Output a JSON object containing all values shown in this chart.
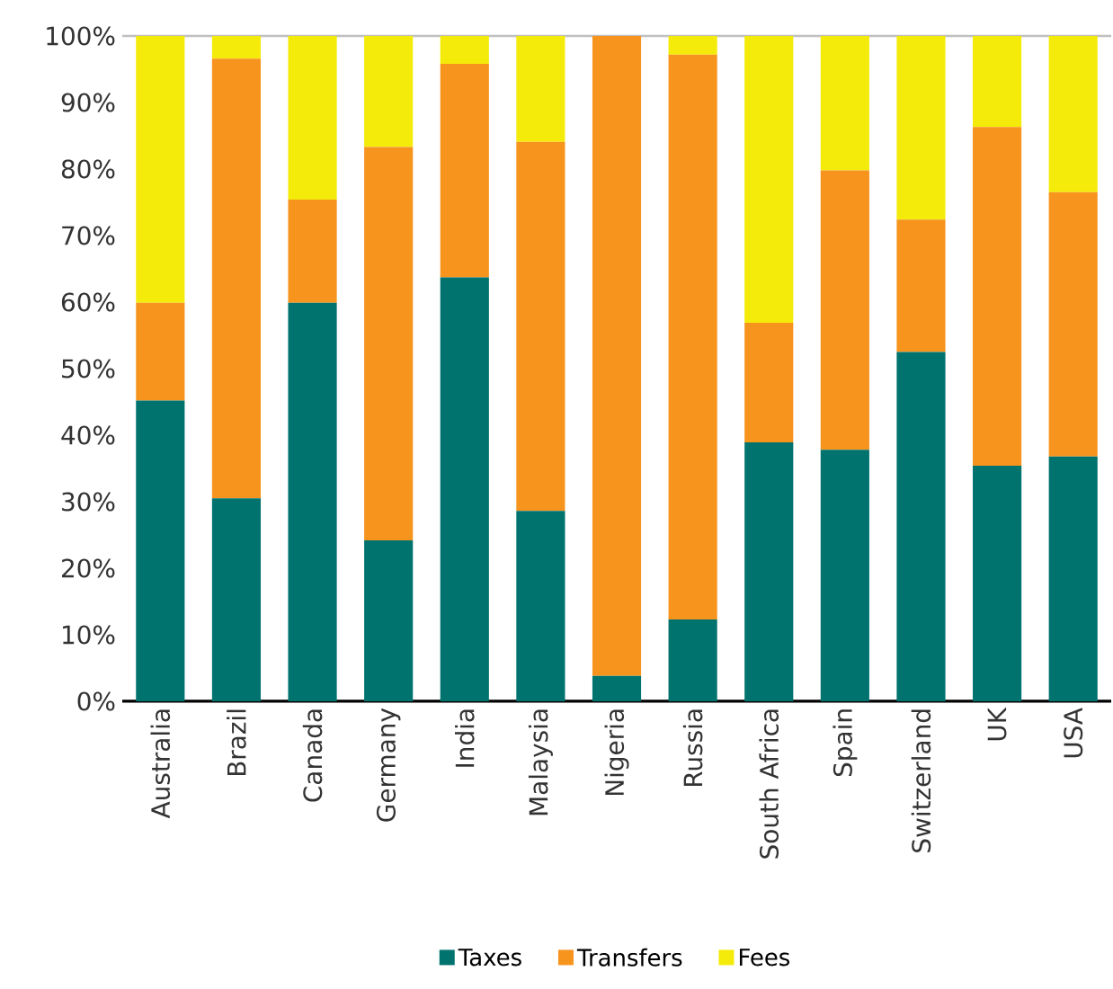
{
  "chart_data": {
    "type": "bar",
    "stacked": true,
    "categories": [
      "Australia",
      "Brazil",
      "Canada",
      "Germany",
      "India",
      "Malaysia",
      "Nigeria",
      "Russia",
      "South Africa",
      "Spain",
      "Switzerland",
      "UK",
      "USA"
    ],
    "series": [
      {
        "name": "Taxes",
        "color": "#00736f",
        "values": [
          45.2,
          30.5,
          59.9,
          24.2,
          63.7,
          28.6,
          3.8,
          12.3,
          38.9,
          37.8,
          52.5,
          35.4,
          36.8
        ]
      },
      {
        "name": "Transfers",
        "color": "#f7941e",
        "values": [
          14.7,
          66.1,
          15.5,
          59.1,
          32.1,
          55.5,
          96.2,
          84.9,
          18.0,
          42.0,
          19.9,
          50.9,
          39.7
        ]
      },
      {
        "name": "Fees",
        "color": "#f4eb0a",
        "values": [
          40.1,
          3.4,
          24.6,
          16.7,
          4.2,
          15.9,
          0,
          2.8,
          43.1,
          20.2,
          27.6,
          13.7,
          23.5
        ]
      }
    ],
    "ylim": [
      0,
      100
    ],
    "yticks": [
      {
        "value": 0,
        "label": "0%"
      },
      {
        "value": 10,
        "label": "10%"
      },
      {
        "value": 20,
        "label": "20%"
      },
      {
        "value": 30,
        "label": "30%"
      },
      {
        "value": 40,
        "label": "40%"
      },
      {
        "value": 50,
        "label": "50%"
      },
      {
        "value": 60,
        "label": "60%"
      },
      {
        "value": 70,
        "label": "70%"
      },
      {
        "value": 80,
        "label": "80%"
      },
      {
        "value": 90,
        "label": "90%"
      },
      {
        "value": 100,
        "label": "100%"
      }
    ],
    "legend": "bottom"
  }
}
